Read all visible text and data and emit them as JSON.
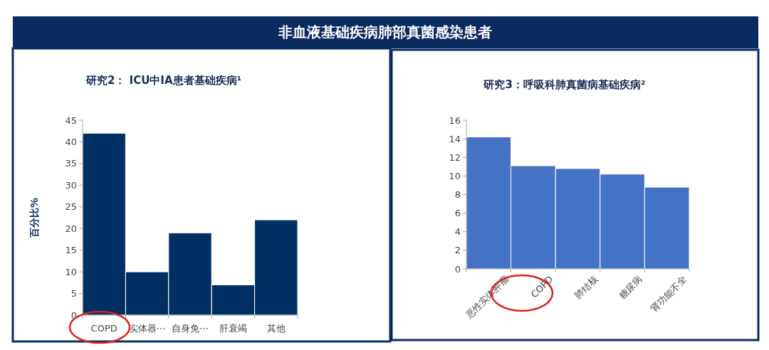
{
  "chart_data": [
    {
      "type": "bar",
      "title": "研究2： ICU中IA患者基础疾病¹",
      "ylabel": "百分比%",
      "annotations": [
        "非血液基础疾病肺部真菌感染患者"
      ],
      "categories": [
        "COPD",
        "实体器⋯",
        "自身免⋯",
        "肝衰竭",
        "其他"
      ],
      "values": [
        42,
        10,
        19,
        7,
        22
      ],
      "color": "#003063",
      "ylim": [
        0,
        45
      ],
      "yticks": [
        0,
        5,
        10,
        15,
        20,
        25,
        30,
        35,
        40,
        45
      ],
      "grid": false
    },
    {
      "type": "bar",
      "title": "研究3：呼吸科肺真菌病基础疾病²",
      "categories": [
        "恶性实体肿瘤",
        "COPD",
        "肺结核",
        "糖尿病",
        "肾功能不全"
      ],
      "values": [
        14.2,
        11.1,
        10.8,
        10.2,
        8.8
      ],
      "color": "#4472c4",
      "ylim": [
        0,
        16
      ],
      "yticks": [
        0,
        2,
        4,
        6,
        8,
        10,
        12,
        14,
        16
      ],
      "grid": false
    }
  ]
}
